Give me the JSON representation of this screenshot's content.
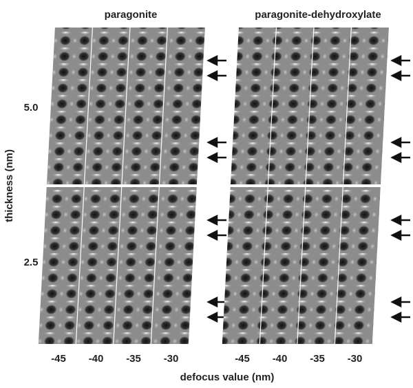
{
  "panels": {
    "columns": [
      {
        "title": "paragonite"
      },
      {
        "title": "paragonite-dehydroxylate"
      }
    ],
    "rows": [
      {
        "label": "5.0"
      },
      {
        "label": "2.5"
      }
    ]
  },
  "y_axis": {
    "label": "thickness (nm)"
  },
  "x_axis": {
    "label": "defocus value (nm)",
    "ticks": [
      [
        "-45",
        "-40",
        "-35",
        "-30"
      ],
      [
        "-45",
        "-40",
        "-35",
        "-30"
      ]
    ]
  }
}
